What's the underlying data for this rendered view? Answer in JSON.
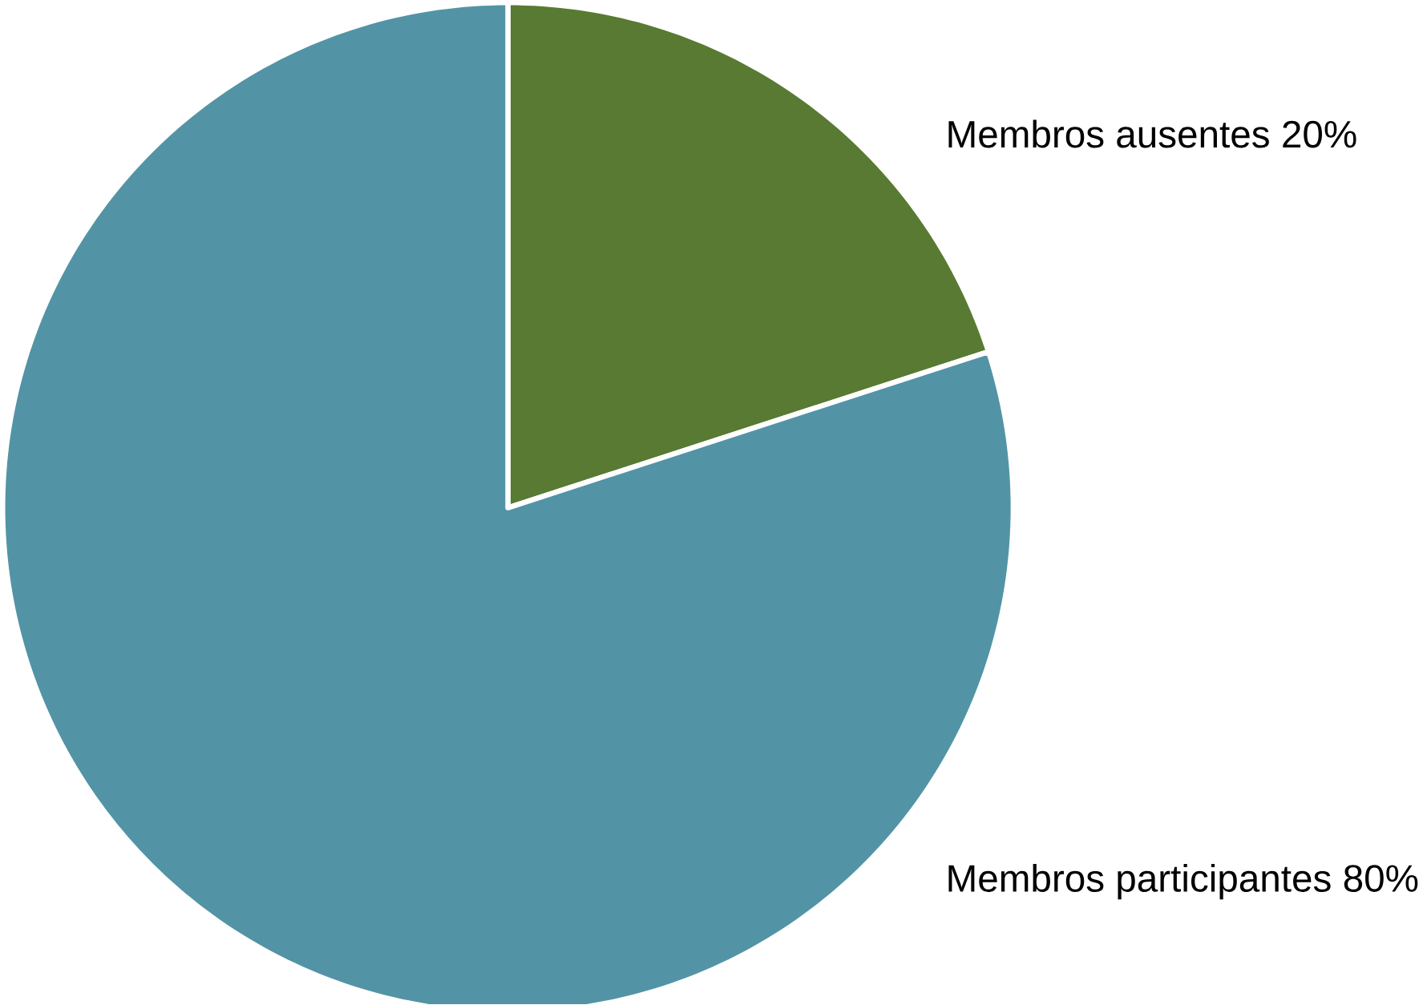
{
  "chart_data": {
    "type": "pie",
    "categories": [
      "Membros ausentes",
      "Membros participantes"
    ],
    "values": [
      20,
      80
    ],
    "colors": [
      "#587a32",
      "#5294a5"
    ],
    "value_labels": [
      "20%",
      "80%"
    ]
  }
}
